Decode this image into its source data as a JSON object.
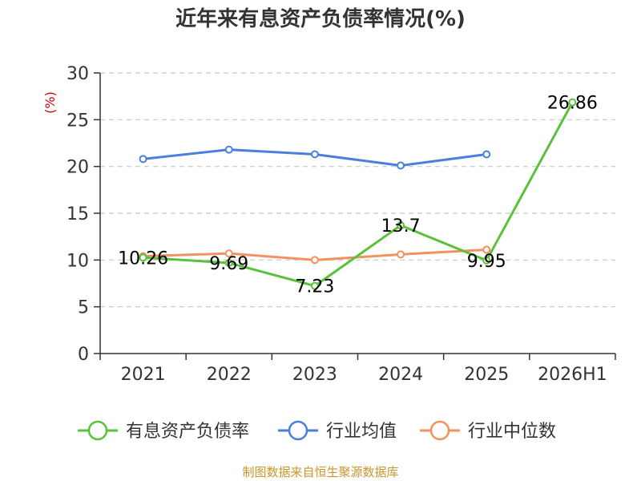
{
  "chart_data": {
    "type": "line",
    "title": "近年来有息资产负债率情况(%)",
    "ylabel": "(%)",
    "xlabel": "",
    "categories": [
      "2021",
      "2022",
      "2023",
      "2024",
      "2025",
      "2026H1"
    ],
    "ylim": [
      0,
      30
    ],
    "yticks": [
      0,
      5,
      10,
      15,
      20,
      25,
      30
    ],
    "grid": "horizontal-dashed",
    "legend_position": "bottom",
    "series": [
      {
        "name": "有息资产负债率",
        "color": "#5ac13a",
        "values": [
          10.26,
          9.69,
          7.23,
          13.7,
          9.95,
          26.86
        ],
        "labels": [
          "10.26",
          "9.69",
          "7.23",
          "13.7",
          "9.95",
          "26.86"
        ]
      },
      {
        "name": "行业均值",
        "color": "#4a7fdb",
        "values": [
          20.8,
          21.8,
          21.3,
          20.1,
          21.3,
          null
        ]
      },
      {
        "name": "行业中位数",
        "color": "#f39160",
        "values": [
          10.4,
          10.7,
          10.0,
          10.6,
          11.1,
          null
        ]
      }
    ]
  },
  "footer": {
    "source": "制图数据来自恒生聚源数据库",
    "color": "#c8962a"
  },
  "ylabel_color": "#cc0000"
}
